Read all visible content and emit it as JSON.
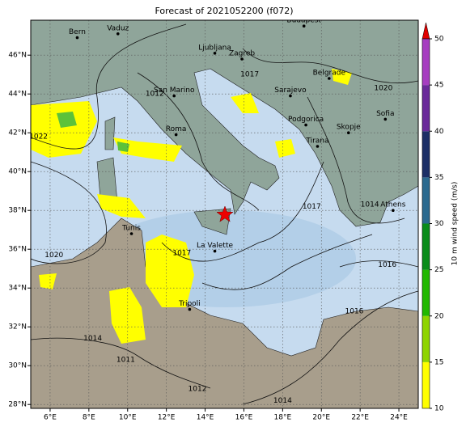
{
  "title": "Forecast of 2021052200 (f072)",
  "map": {
    "xlim": [
      5,
      25
    ],
    "ylim": [
      27.8,
      47.8
    ],
    "xticks": [
      {
        "value": 6,
        "label": "6°E"
      },
      {
        "value": 8,
        "label": "8°E"
      },
      {
        "value": 10,
        "label": "10°E"
      },
      {
        "value": 12,
        "label": "12°E"
      },
      {
        "value": 14,
        "label": "14°E"
      },
      {
        "value": 16,
        "label": "16°E"
      },
      {
        "value": 18,
        "label": "18°E"
      },
      {
        "value": 20,
        "label": "20°E"
      },
      {
        "value": 22,
        "label": "22°E"
      },
      {
        "value": 24,
        "label": "24°E"
      }
    ],
    "yticks": [
      {
        "value": 28,
        "label": "28°N"
      },
      {
        "value": 30,
        "label": "30°N"
      },
      {
        "value": 32,
        "label": "32°N"
      },
      {
        "value": 34,
        "label": "34°N"
      },
      {
        "value": 36,
        "label": "36°N"
      },
      {
        "value": 38,
        "label": "38°N"
      },
      {
        "value": 40,
        "label": "40°N"
      },
      {
        "value": 42,
        "label": "42°N"
      },
      {
        "value": 44,
        "label": "44°N"
      },
      {
        "value": 46,
        "label": "46°N"
      }
    ],
    "grid": true,
    "cities": [
      {
        "name": "Bern",
        "lon": 7.4,
        "lat": 46.9
      },
      {
        "name": "Vaduz",
        "lon": 9.5,
        "lat": 47.1
      },
      {
        "name": "Budapest",
        "lon": 19.1,
        "lat": 47.5
      },
      {
        "name": "Ljubljana",
        "lon": 14.5,
        "lat": 46.1
      },
      {
        "name": "Zagreb",
        "lon": 15.9,
        "lat": 45.8
      },
      {
        "name": "Belgrade",
        "lon": 20.4,
        "lat": 44.8
      },
      {
        "name": "San Marino",
        "lon": 12.4,
        "lat": 43.9
      },
      {
        "name": "Sarajevo",
        "lon": 18.4,
        "lat": 43.9
      },
      {
        "name": "Roma",
        "lon": 12.5,
        "lat": 41.9
      },
      {
        "name": "Podgorica",
        "lon": 19.2,
        "lat": 42.4
      },
      {
        "name": "Skopje",
        "lon": 21.4,
        "lat": 42.0
      },
      {
        "name": "Sofia",
        "lon": 23.3,
        "lat": 42.7
      },
      {
        "name": "Tirana",
        "lon": 19.8,
        "lat": 41.3
      },
      {
        "name": "Athens",
        "lon": 23.7,
        "lat": 38.0
      },
      {
        "name": "Tunis",
        "lon": 10.2,
        "lat": 36.8
      },
      {
        "name": "La Valette",
        "lon": 14.5,
        "lat": 35.9
      },
      {
        "name": "Tripoli",
        "lon": 13.2,
        "lat": 32.9
      }
    ],
    "contour_labels": [
      {
        "value": 1022,
        "lon": 5.4,
        "lat": 41.8
      },
      {
        "value": 1020,
        "lon": 6.2,
        "lat": 35.7
      },
      {
        "value": 1017,
        "lon": 12.8,
        "lat": 35.8
      },
      {
        "value": 1017,
        "lon": 19.5,
        "lat": 38.2
      },
      {
        "value": 1014,
        "lon": 8.2,
        "lat": 31.4
      },
      {
        "value": 1011,
        "lon": 9.9,
        "lat": 30.3
      },
      {
        "value": 1012,
        "lon": 13.6,
        "lat": 28.8
      },
      {
        "value": 1014,
        "lon": 18.0,
        "lat": 28.2
      },
      {
        "value": 1016,
        "lon": 21.7,
        "lat": 32.8
      },
      {
        "value": 1016,
        "lon": 23.4,
        "lat": 35.2
      },
      {
        "value": 1020,
        "lon": 23.2,
        "lat": 44.3
      },
      {
        "value": 1012,
        "lon": 11.4,
        "lat": 44.0
      },
      {
        "value": 1017,
        "lon": 16.3,
        "lat": 45.0
      },
      {
        "value": 1014,
        "lon": 22.5,
        "lat": 38.3
      }
    ],
    "colorbar": {
      "label": "10 m wind speed (m/s)",
      "ticks": [
        10,
        15,
        20,
        25,
        30,
        35,
        40,
        45,
        50
      ],
      "colors": [
        "#ffff00",
        "#8fd400",
        "#22b800",
        "#0a8c1a",
        "#2b6a8f",
        "#1c2f66",
        "#6a2a9a",
        "#a63ec0"
      ]
    }
  }
}
